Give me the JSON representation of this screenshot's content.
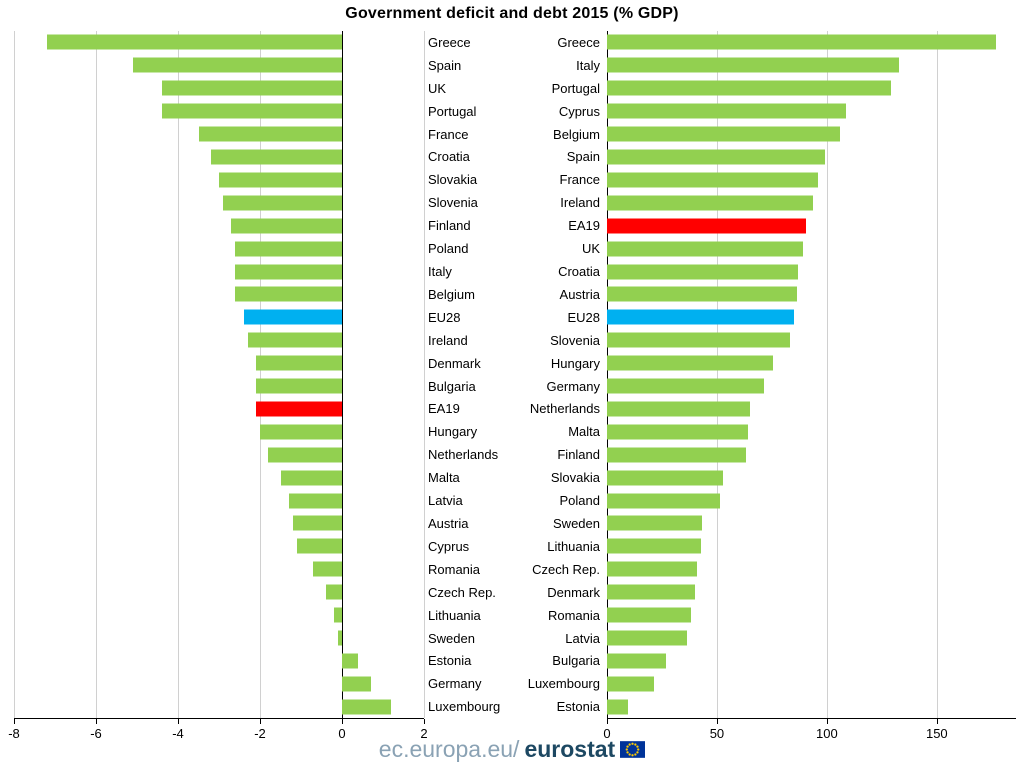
{
  "title": "Government deficit and debt 2015 (% GDP)",
  "footer": {
    "url_prefix": "ec.europa.eu/",
    "brand": "eurostat"
  },
  "colors": {
    "bar_green": "#92d050",
    "highlight_blue": "#00b0f0",
    "highlight_red": "#ff0000",
    "grid": "#d0d0d0",
    "axis": "#000000",
    "footer_prefix": "#8aa2b4",
    "footer_brand": "#1d4862",
    "flag_blue": "#003399",
    "flag_stars": "#ffcc00"
  },
  "chart_data": [
    {
      "type": "bar",
      "orientation": "horizontal",
      "panel": "deficit",
      "xlim": [
        -8,
        2
      ],
      "ticks": [
        -8,
        -6,
        -4,
        -2,
        0,
        2
      ],
      "grid": true,
      "categories": [
        "Greece",
        "Spain",
        "UK",
        "Portugal",
        "France",
        "Croatia",
        "Slovakia",
        "Slovenia",
        "Finland",
        "Poland",
        "Italy",
        "Belgium",
        "EU28",
        "Ireland",
        "Denmark",
        "Bulgaria",
        "EA19",
        "Hungary",
        "Netherlands",
        "Malta",
        "Latvia",
        "Austria",
        "Cyprus",
        "Romania",
        "Czech Rep.",
        "Lithuania",
        "Sweden",
        "Estonia",
        "Germany",
        "Luxembourg"
      ],
      "values": [
        -7.2,
        -5.1,
        -4.4,
        -4.4,
        -3.5,
        -3.2,
        -3.0,
        -2.9,
        -2.7,
        -2.6,
        -2.6,
        -2.6,
        -2.4,
        -2.3,
        -2.1,
        -2.1,
        -2.1,
        -2.0,
        -1.8,
        -1.5,
        -1.3,
        -1.2,
        -1.1,
        -0.7,
        -0.4,
        -0.2,
        -0.1,
        0.4,
        0.7,
        1.2
      ],
      "highlights": {
        "EU28": "#00b0f0",
        "EA19": "#ff0000"
      }
    },
    {
      "type": "bar",
      "orientation": "horizontal",
      "panel": "debt",
      "xlim": [
        0,
        186
      ],
      "ticks": [
        0,
        50,
        100,
        150
      ],
      "grid": true,
      "categories": [
        "Greece",
        "Italy",
        "Portugal",
        "Cyprus",
        "Belgium",
        "Spain",
        "France",
        "Ireland",
        "EA19",
        "UK",
        "Croatia",
        "Austria",
        "EU28",
        "Slovenia",
        "Hungary",
        "Germany",
        "Netherlands",
        "Malta",
        "Finland",
        "Slovakia",
        "Poland",
        "Sweden",
        "Lithuania",
        "Czech Rep.",
        "Denmark",
        "Romania",
        "Latvia",
        "Bulgaria",
        "Luxembourg",
        "Estonia"
      ],
      "values": [
        176.9,
        132.7,
        129.0,
        108.9,
        106.0,
        99.2,
        95.8,
        93.8,
        90.7,
        89.2,
        86.7,
        86.2,
        85.2,
        83.2,
        75.3,
        71.2,
        65.1,
        63.9,
        63.1,
        52.9,
        51.3,
        43.4,
        42.7,
        41.1,
        40.2,
        38.4,
        36.4,
        26.7,
        21.4,
        9.7
      ],
      "highlights": {
        "EU28": "#00b0f0",
        "EA19": "#ff0000"
      }
    }
  ]
}
